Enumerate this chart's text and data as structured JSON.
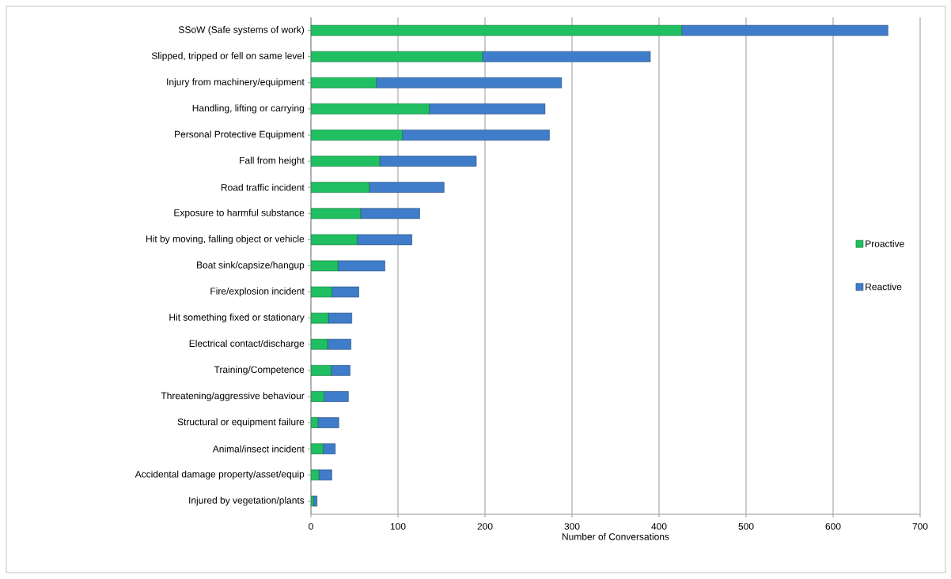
{
  "chart_data": {
    "type": "bar",
    "orientation": "horizontal",
    "stacked": true,
    "xlabel": "Number of Conversations",
    "categories": [
      "SSoW (Safe systems of work)",
      "Slipped, tripped or fell on same level",
      "Injury from machinery/equipment",
      "Handling, lifting or carrying",
      "Personal Protective Equipment",
      "Fall from height",
      "Road traffic incident",
      "Exposure to harmful substance",
      "Hit by moving, falling object or vehicle",
      "Boat sink/capsize/hangup",
      "Fire/explosion incident",
      "Hit something fixed or stationary",
      "Electrical contact/discharge",
      "Training/Competence",
      "Threatening/aggressive behaviour",
      "Structural or equipment failure",
      "Animal/insect incident",
      "Accidental damage property/asset/equip",
      "Injured by vegetation/plants"
    ],
    "series": [
      {
        "name": "Proactive",
        "color": "#1fbf62",
        "values": [
          426,
          197,
          75,
          136,
          105,
          79,
          67,
          57,
          53,
          31,
          24,
          20,
          19,
          23,
          15,
          8,
          14,
          9,
          3
        ]
      },
      {
        "name": "Reactive",
        "color": "#3f7cc9",
        "values": [
          237,
          193,
          213,
          133,
          169,
          111,
          86,
          68,
          63,
          54,
          31,
          27,
          27,
          22,
          28,
          24,
          14,
          15,
          4
        ]
      }
    ],
    "xlim": [
      0,
      700
    ],
    "xticks": [
      0,
      100,
      200,
      300,
      400,
      500,
      600,
      700
    ],
    "grid": "x",
    "legend": "right"
  }
}
